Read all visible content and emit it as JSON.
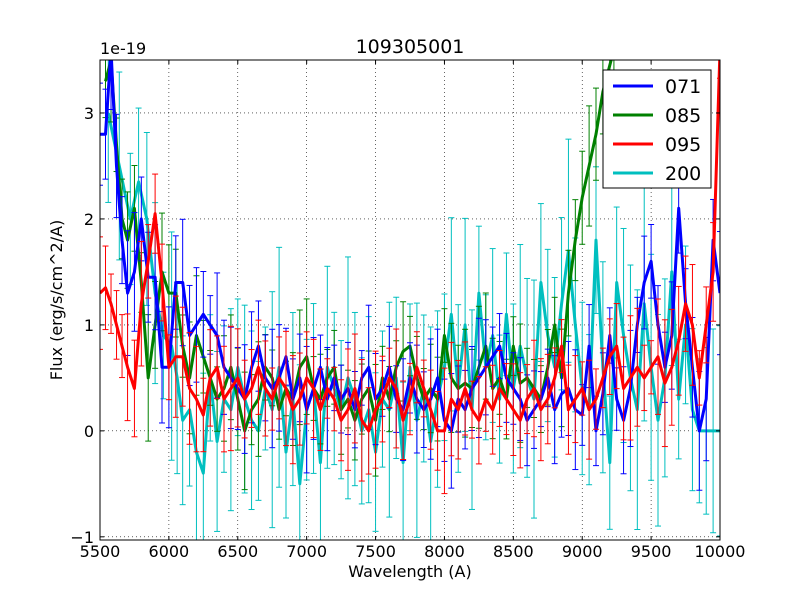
{
  "chart_data": {
    "type": "line",
    "title": "109305001",
    "xlabel": "Wavelength (A)",
    "ylabel": "Flux (erg/s/cm^2/A)",
    "y_offset_label": "1e-19",
    "xlim": [
      5500,
      10000
    ],
    "ylim": [
      -1.03,
      3.5
    ],
    "grid": true,
    "legend_position": "top-right",
    "x_ticks": [
      5500,
      6000,
      6500,
      7000,
      7500,
      8000,
      8500,
      9000,
      9500,
      10000
    ],
    "x_tick_labels": [
      "5500",
      "6000",
      "6500",
      "7000",
      "7500",
      "8000",
      "8500",
      "9000",
      "9500",
      "10000"
    ],
    "y_ticks": [
      -1,
      0,
      1,
      2,
      3
    ],
    "y_tick_labels": [
      "−1",
      "0",
      "1",
      "2",
      "3"
    ],
    "series": [
      {
        "name": "200",
        "color": "#00bfbf",
        "x": [
          5560,
          5640,
          5720,
          5780,
          5840,
          5900,
          5960,
          6020,
          6060,
          6100,
          6150,
          6200,
          6250,
          6300,
          6350,
          6400,
          6450,
          6500,
          6550,
          6600,
          6650,
          6700,
          6750,
          6800,
          6850,
          6900,
          6950,
          7000,
          7050,
          7100,
          7150,
          7200,
          7250,
          7300,
          7350,
          7400,
          7450,
          7500,
          7550,
          7600,
          7650,
          7700,
          7750,
          7800,
          7850,
          7900,
          7950,
          8000,
          8050,
          8100,
          8150,
          8200,
          8250,
          8300,
          8350,
          8400,
          8450,
          8500,
          8550,
          8600,
          8650,
          8700,
          8750,
          8800,
          8850,
          8900,
          8950,
          9000,
          9050,
          9100,
          9150,
          9200,
          9250,
          9300,
          9350,
          9400,
          9450,
          9500,
          9550,
          9600,
          9650,
          9700,
          9750,
          9800,
          9850,
          9900,
          9950,
          10000
        ],
        "y": [
          3.0,
          2.5,
          2.0,
          2.35,
          2.0,
          1.3,
          0.9,
          0.8,
          0.5,
          0.1,
          0.2,
          -0.2,
          -0.4,
          0.5,
          -0.1,
          0.3,
          0.2,
          0.6,
          0.3,
          0.1,
          0.0,
          0.4,
          0.2,
          0.6,
          -0.2,
          0.3,
          -0.5,
          0.2,
          0.4,
          -0.3,
          0.6,
          0.4,
          0.2,
          0.5,
          0.3,
          0.0,
          0.2,
          -0.2,
          0.3,
          0.2,
          0.5,
          -0.3,
          0.6,
          0.1,
          0.4,
          -0.1,
          0.3,
          0.6,
          1.1,
          0.4,
          1.0,
          0.2,
          1.3,
          0.6,
          0.9,
          0.3,
          1.1,
          0.4,
          0.8,
          0.5,
          0.3,
          1.4,
          0.9,
          0.6,
          1.2,
          1.7,
          1.0,
          0.4,
          0.2,
          1.8,
          0.6,
          -0.3,
          1.4,
          0.9,
          0.5,
          0.2,
          1.2,
          0.6,
          0.1,
          0.5,
          1.5,
          0.3,
          1.0,
          0.2,
          0.0,
          0.0,
          0.0,
          0.0
        ]
      },
      {
        "name": "085",
        "color": "#008000",
        "x": [
          5540,
          5580,
          5620,
          5660,
          5700,
          5750,
          5800,
          5850,
          5900,
          5950,
          6000,
          6050,
          6100,
          6150,
          6200,
          6250,
          6300,
          6350,
          6400,
          6450,
          6500,
          6550,
          6600,
          6650,
          6700,
          6750,
          6800,
          6850,
          6900,
          6950,
          7000,
          7050,
          7100,
          7150,
          7200,
          7250,
          7300,
          7350,
          7400,
          7450,
          7500,
          7550,
          7600,
          7650,
          7700,
          7750,
          7800,
          7850,
          7900,
          7950,
          8000,
          8050,
          8100,
          8150,
          8200,
          8250,
          8300,
          8350,
          8400,
          8450,
          8500,
          8550,
          8600,
          8650,
          8700,
          8750,
          8800,
          8850,
          8900,
          8950,
          9000,
          9050,
          9100,
          9150,
          9200,
          9230
        ],
        "y": [
          3.3,
          3.5,
          2.7,
          2.0,
          1.8,
          2.1,
          1.4,
          0.5,
          1.0,
          1.5,
          1.3,
          1.3,
          0.8,
          0.5,
          0.9,
          0.7,
          0.5,
          0.3,
          0.4,
          0.6,
          0.3,
          0.0,
          0.2,
          0.3,
          0.6,
          0.5,
          0.2,
          0.4,
          0.3,
          0.6,
          0.7,
          0.4,
          0.3,
          0.5,
          0.6,
          0.2,
          0.3,
          0.1,
          0.3,
          0.4,
          0.1,
          0.5,
          0.3,
          0.6,
          0.75,
          0.8,
          0.5,
          0.3,
          0.4,
          0.3,
          0.9,
          0.5,
          0.4,
          0.45,
          0.4,
          0.6,
          0.8,
          0.4,
          0.5,
          0.3,
          0.8,
          0.45,
          0.5,
          0.4,
          0.3,
          0.6,
          1.0,
          0.5,
          1.3,
          1.8,
          2.2,
          2.5,
          2.8,
          3.2,
          3.45,
          3.6
        ]
      },
      {
        "name": "071",
        "color": "#0000ff",
        "x": [
          5500,
          5540,
          5580,
          5620,
          5660,
          5700,
          5750,
          5800,
          5850,
          5900,
          5950,
          6000,
          6050,
          6100,
          6150,
          6200,
          6250,
          6300,
          6350,
          6400,
          6450,
          6500,
          6550,
          6600,
          6650,
          6700,
          6750,
          6800,
          6850,
          6900,
          6950,
          7000,
          7050,
          7100,
          7150,
          7200,
          7250,
          7300,
          7350,
          7400,
          7450,
          7500,
          7550,
          7600,
          7650,
          7700,
          7750,
          7800,
          7850,
          7900,
          7950,
          8000,
          8050,
          8100,
          8150,
          8200,
          8250,
          8300,
          8350,
          8400,
          8450,
          8500,
          8550,
          8600,
          8650,
          8700,
          8750,
          8800,
          8850,
          8900,
          8950,
          9000,
          9050,
          9100,
          9150,
          9200,
          9250,
          9300,
          9350,
          9400,
          9450,
          9500,
          9550,
          9600,
          9650,
          9700,
          9750,
          9800,
          9850,
          9900,
          9950,
          10000
        ],
        "y": [
          2.8,
          2.8,
          3.6,
          2.5,
          1.8,
          1.3,
          1.5,
          2.0,
          1.45,
          1.45,
          0.6,
          0.6,
          1.4,
          1.4,
          0.9,
          1.0,
          1.1,
          1.0,
          0.9,
          0.6,
          0.5,
          0.4,
          0.3,
          0.6,
          0.8,
          0.5,
          0.4,
          0.5,
          0.7,
          0.3,
          0.5,
          0.2,
          0.4,
          0.6,
          0.3,
          0.5,
          0.3,
          0.4,
          0.2,
          0.5,
          0.6,
          0.3,
          0.4,
          0.6,
          0.3,
          0.2,
          0.5,
          0.3,
          0.2,
          0.3,
          0.5,
          0.1,
          0.0,
          0.3,
          0.2,
          0.4,
          0.5,
          0.6,
          0.7,
          0.8,
          0.5,
          0.4,
          0.3,
          0.1,
          0.2,
          0.3,
          0.5,
          0.2,
          0.35,
          0.4,
          0.2,
          0.15,
          0.8,
          0.0,
          0.35,
          0.9,
          0.3,
          0.1,
          0.4,
          1.0,
          1.4,
          1.6,
          1.0,
          0.6,
          0.9,
          2.1,
          1.2,
          0.6,
          0.0,
          0.3,
          1.8,
          1.3
        ]
      },
      {
        "name": "095",
        "color": "#ff0000",
        "x": [
          5500,
          5540,
          5580,
          5620,
          5660,
          5700,
          5750,
          5800,
          5850,
          5900,
          5950,
          6000,
          6050,
          6100,
          6150,
          6200,
          6250,
          6300,
          6350,
          6400,
          6450,
          6500,
          6550,
          6600,
          6650,
          6700,
          6750,
          6800,
          6850,
          6900,
          6950,
          7000,
          7050,
          7100,
          7150,
          7200,
          7250,
          7300,
          7350,
          7400,
          7450,
          7500,
          7550,
          7600,
          7650,
          7700,
          7750,
          7800,
          7850,
          7900,
          7950,
          8000,
          8050,
          8100,
          8150,
          8200,
          8250,
          8300,
          8350,
          8400,
          8450,
          8500,
          8550,
          8600,
          8650,
          8700,
          8750,
          8800,
          8850,
          8900,
          8950,
          9000,
          9050,
          9100,
          9150,
          9200,
          9250,
          9300,
          9350,
          9400,
          9450,
          9500,
          9550,
          9600,
          9650,
          9700,
          9750,
          9800,
          9850,
          9900,
          9950,
          10000
        ],
        "y": [
          1.3,
          1.35,
          1.2,
          1.0,
          0.8,
          0.6,
          0.4,
          1.2,
          1.6,
          2.05,
          1.4,
          0.6,
          0.7,
          0.7,
          0.4,
          0.3,
          0.15,
          0.5,
          0.6,
          0.3,
          0.4,
          0.5,
          0.3,
          0.4,
          0.6,
          0.4,
          0.3,
          0.5,
          0.4,
          0.2,
          0.3,
          0.5,
          0.4,
          0.2,
          0.4,
          0.3,
          0.1,
          0.2,
          0.4,
          0.1,
          0.0,
          0.2,
          0.3,
          0.5,
          0.4,
          0.1,
          0.3,
          0.6,
          0.4,
          0.2,
          0.0,
          0.0,
          0.3,
          0.2,
          0.4,
          0.2,
          0.1,
          0.3,
          0.2,
          0.4,
          0.3,
          0.2,
          0.1,
          0.3,
          0.4,
          0.2,
          0.3,
          0.5,
          0.8,
          0.2,
          0.3,
          0.4,
          0.2,
          0.3,
          0.5,
          0.7,
          0.8,
          0.4,
          0.5,
          0.6,
          0.5,
          0.6,
          0.7,
          0.45,
          0.6,
          0.85,
          1.2,
          1.0,
          0.5,
          1.0,
          1.5,
          3.6
        ]
      }
    ]
  }
}
